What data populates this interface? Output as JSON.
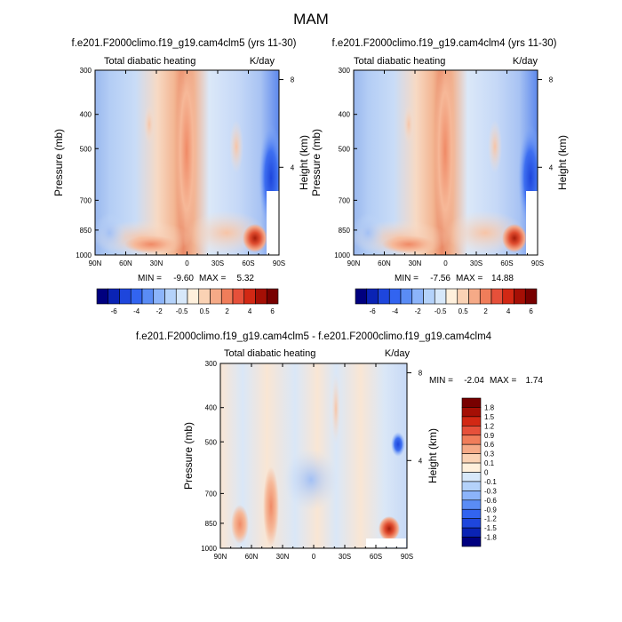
{
  "page_title": "MAM",
  "chart_data": [
    {
      "type": "heatmap",
      "panel": "left",
      "title": "f.e201.F2000climo.f19_g19.cam4clm5 (yrs 11-30)",
      "left_string": "Total diabatic heating",
      "right_string": "K/day",
      "ylabel": "Pressure (mb)",
      "ylabel_right": "Height (km)",
      "xticks": [
        "90N",
        "60N",
        "30N",
        "0",
        "30S",
        "60S",
        "90S"
      ],
      "yticks": [
        "300",
        "400",
        "500",
        "700",
        "850",
        "1000"
      ],
      "yticks_right": [
        "8",
        "4"
      ],
      "min_label": "MIN =",
      "min_value": "-9.60",
      "max_label": "MAX =",
      "max_value": "5.32",
      "stats": {
        "min": -9.6,
        "max": 5.32
      }
    },
    {
      "type": "heatmap",
      "panel": "right",
      "title": "f.e201.F2000climo.f19_g19.cam4clm4 (yrs 11-30)",
      "left_string": "Total diabatic heating",
      "right_string": "K/day",
      "ylabel": "Pressure (mb)",
      "ylabel_right": "Height (km)",
      "xticks": [
        "90N",
        "60N",
        "30N",
        "0",
        "30S",
        "60S",
        "90S"
      ],
      "yticks": [
        "300",
        "400",
        "500",
        "700",
        "850",
        "1000"
      ],
      "yticks_right": [
        "8",
        "4"
      ],
      "min_label": "MIN =",
      "min_value": "-7.56",
      "max_label": "MAX =",
      "max_value": "14.88",
      "stats": {
        "min": -7.56,
        "max": 14.88
      }
    },
    {
      "type": "heatmap",
      "panel": "difference",
      "title": "f.e201.F2000climo.f19_g19.cam4clm5 - f.e201.F2000climo.f19_g19.cam4clm4",
      "left_string": "Total diabatic heating",
      "right_string": "K/day",
      "ylabel": "Pressure (mb)",
      "ylabel_right": "Height (km)",
      "xticks": [
        "90N",
        "60N",
        "30N",
        "0",
        "30S",
        "60S",
        "90S"
      ],
      "yticks": [
        "300",
        "400",
        "500",
        "700",
        "850",
        "1000"
      ],
      "yticks_right": [
        "8",
        "4"
      ],
      "min_label": "MIN =",
      "min_value": "-2.04",
      "max_label": "MAX =",
      "max_value": "1.74",
      "stats": {
        "min": -2.04,
        "max": 1.74
      }
    }
  ],
  "colorbars": {
    "top": {
      "labels": [
        "-6",
        "-4",
        "-2",
        "-0.5",
        "0.5",
        "2",
        "4",
        "6"
      ],
      "colors": [
        "#00007f",
        "#0a23b4",
        "#1e46dc",
        "#3264f0",
        "#5a8cf5",
        "#8cb4fa",
        "#b4d2fa",
        "#d7e8fa",
        "#fff0dc",
        "#fad2b4",
        "#f5aa87",
        "#f07d5a",
        "#e6503a",
        "#d22814",
        "#a50f05",
        "#780000"
      ]
    },
    "bottom": {
      "labels": [
        "1.8",
        "1.5",
        "1.2",
        "0.9",
        "0.6",
        "0.3",
        "0.1",
        "0",
        "-0.1",
        "-0.3",
        "-0.6",
        "-0.9",
        "-1.2",
        "-1.5",
        "-1.8"
      ],
      "colors": [
        "#780000",
        "#a50f05",
        "#d22814",
        "#e6503a",
        "#f07d5a",
        "#f5aa87",
        "#fad2b4",
        "#fff0dc",
        "#d7e8fa",
        "#b4d2fa",
        "#8cb4fa",
        "#5a8cf5",
        "#3264f0",
        "#1e46dc",
        "#0a23b4",
        "#00007f"
      ]
    }
  }
}
